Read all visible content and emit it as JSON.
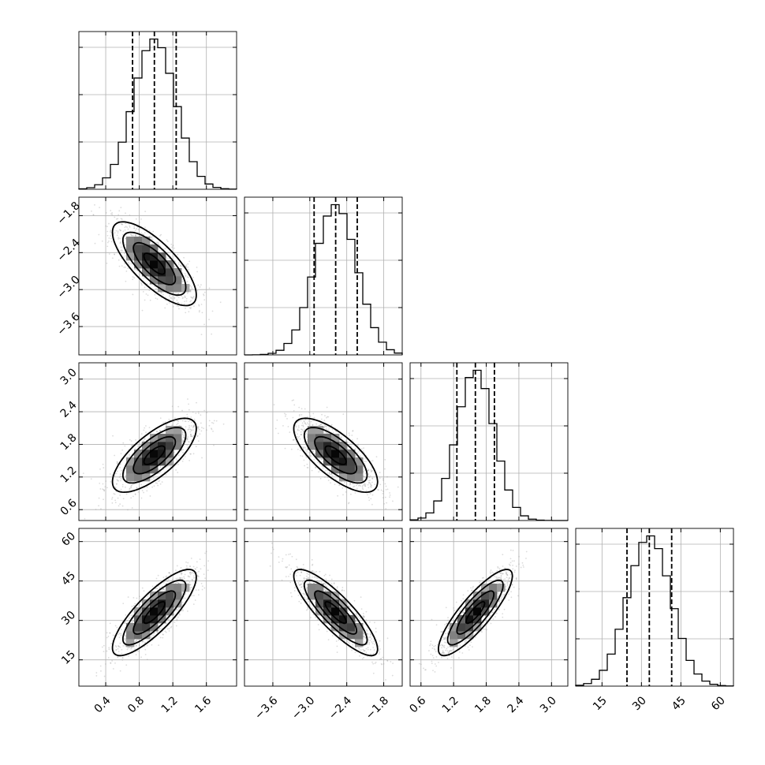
{
  "chart_data": {
    "type": "scatter",
    "style": "corner-plot",
    "colors": {
      "scatter": "#9a9a9a",
      "line": "#000000",
      "grid": "#b0b0b0"
    },
    "grid": true,
    "parameters": [
      {
        "index": 0,
        "range": [
          0.08,
          1.96
        ],
        "mean": 0.98,
        "sd": 0.25,
        "quantiles": [
          0.72,
          0.98,
          1.24
        ],
        "ticks": [
          "0.4",
          "0.8",
          "1.2",
          "1.6"
        ]
      },
      {
        "index": 1,
        "range": [
          -4.06,
          -1.5
        ],
        "mean": -2.58,
        "sd": 0.34,
        "quantiles": [
          -2.93,
          -2.58,
          -2.23
        ],
        "ticks": [
          "−3.6",
          "−3.0",
          "−2.4",
          "−1.8"
        ]
      },
      {
        "index": 2,
        "range": [
          0.4,
          3.3
        ],
        "mean": 1.6,
        "sd": 0.34,
        "quantiles": [
          1.26,
          1.6,
          1.95
        ],
        "ticks": [
          "0.6",
          "1.2",
          "1.8",
          "2.4",
          "3.0"
        ]
      },
      {
        "index": 3,
        "range": [
          5,
          65
        ],
        "mean": 33,
        "sd": 8.2,
        "quantiles": [
          24.5,
          33,
          41.5
        ],
        "ticks": [
          "15",
          "30",
          "45",
          "60"
        ]
      }
    ],
    "correlations": [
      {
        "pair": [
          0,
          1
        ],
        "rho": -0.75
      },
      {
        "pair": [
          0,
          2
        ],
        "rho": 0.72
      },
      {
        "pair": [
          1,
          2
        ],
        "rho": -0.72
      },
      {
        "pair": [
          0,
          3
        ],
        "rho": 0.82
      },
      {
        "pair": [
          1,
          3
        ],
        "rho": -0.85
      },
      {
        "pair": [
          2,
          3
        ],
        "rho": 0.85
      }
    ]
  }
}
